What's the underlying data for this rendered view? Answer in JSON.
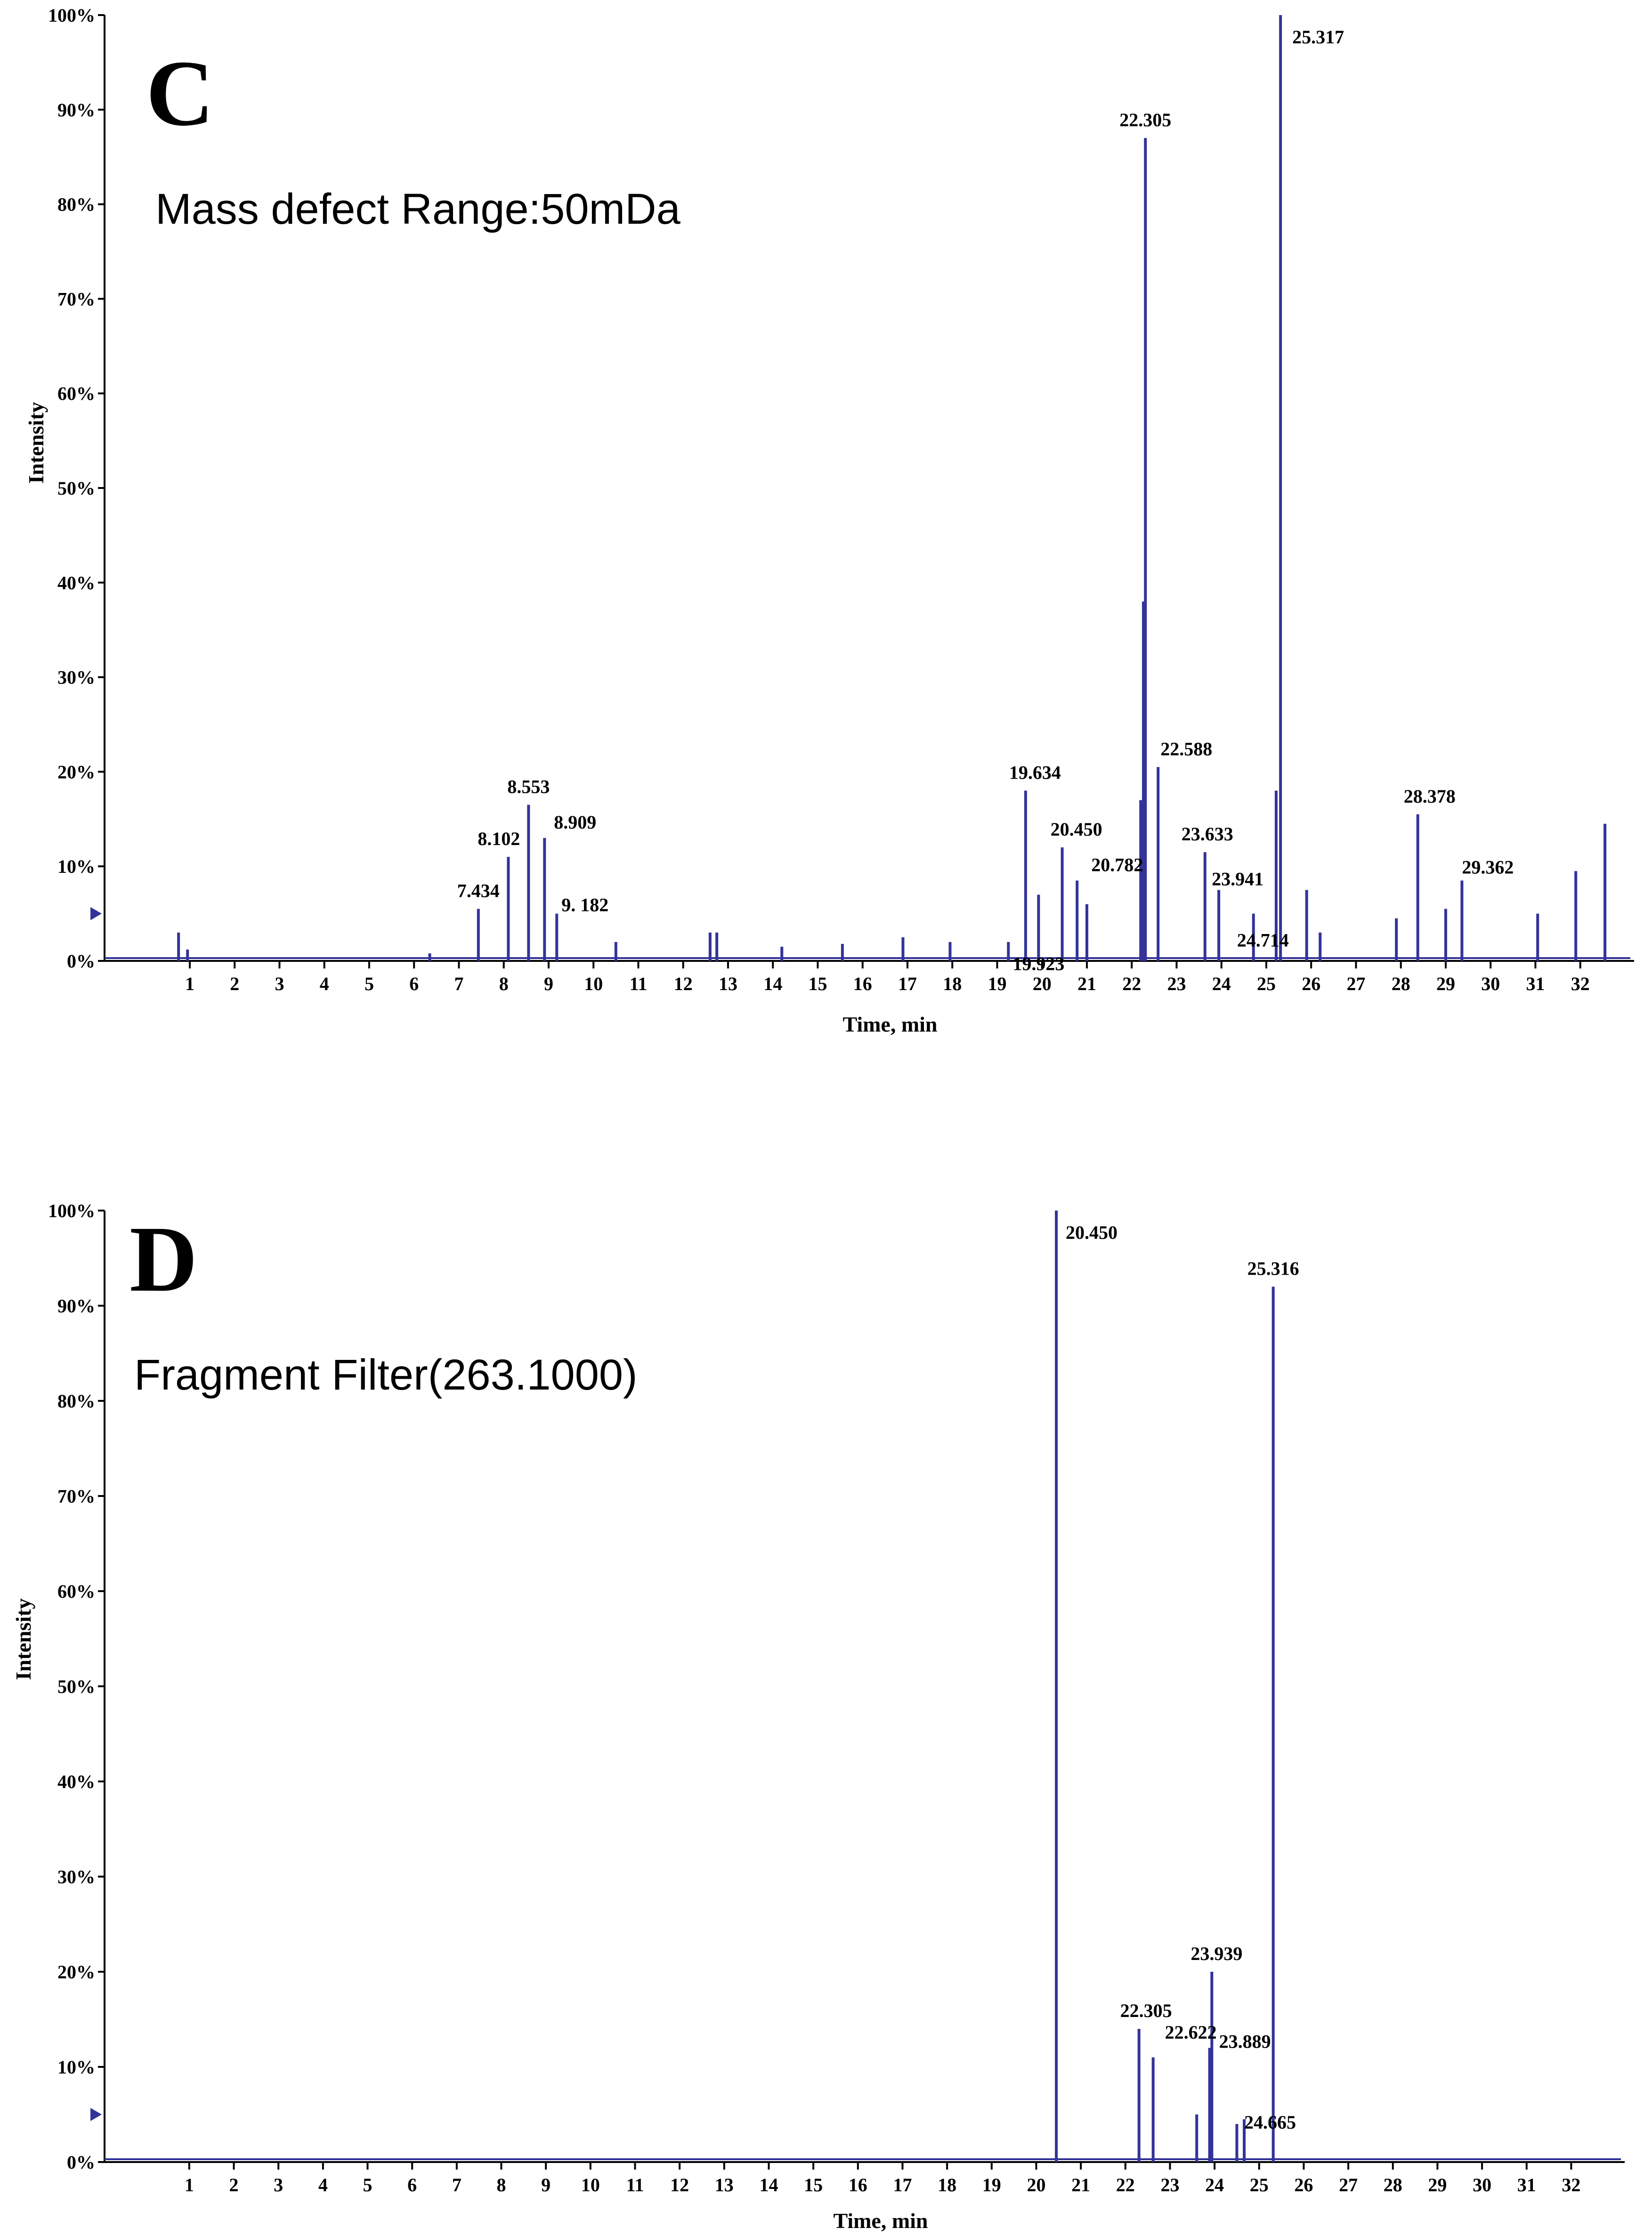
{
  "chart_data": [
    {
      "type": "line",
      "panel_label": "C",
      "subtitle": "Mass defect Range:50mDa",
      "xlabel": "Time, min",
      "ylabel": "Intensity",
      "xlim": [
        -0.9,
        33.2
      ],
      "ylim": [
        0,
        100
      ],
      "xticks": [
        "1",
        "2",
        "3",
        "4",
        "5",
        "6",
        "7",
        "8",
        "9",
        "10",
        "11",
        "12",
        "13",
        "14",
        "15",
        "16",
        "17",
        "18",
        "19",
        "20",
        "21",
        "22",
        "23",
        "24",
        "25",
        "26",
        "27",
        "28",
        "29",
        "30",
        "31",
        "32"
      ],
      "yticks": [
        "0%",
        "10%",
        "20%",
        "30%",
        "40%",
        "50%",
        "60%",
        "70%",
        "80%",
        "90%",
        "100%"
      ],
      "peaks": [
        {
          "x": 0.75,
          "y": 3.0
        },
        {
          "x": 0.95,
          "y": 1.2
        },
        {
          "x": 6.35,
          "y": 0.8
        },
        {
          "x": 7.434,
          "y": 5.5
        },
        {
          "x": 8.102,
          "y": 11.0
        },
        {
          "x": 8.553,
          "y": 16.5
        },
        {
          "x": 8.909,
          "y": 13.0
        },
        {
          "x": 9.182,
          "y": 5.0
        },
        {
          "x": 10.5,
          "y": 2.0
        },
        {
          "x": 12.6,
          "y": 3.0
        },
        {
          "x": 12.75,
          "y": 3.0
        },
        {
          "x": 14.2,
          "y": 1.5
        },
        {
          "x": 15.55,
          "y": 1.8
        },
        {
          "x": 16.9,
          "y": 2.5
        },
        {
          "x": 17.95,
          "y": 2.0
        },
        {
          "x": 19.25,
          "y": 2.0
        },
        {
          "x": 19.634,
          "y": 18.0
        },
        {
          "x": 19.923,
          "y": 7.0
        },
        {
          "x": 20.45,
          "y": 12.0
        },
        {
          "x": 20.782,
          "y": 8.5
        },
        {
          "x": 21.0,
          "y": 6.0
        },
        {
          "x": 22.2,
          "y": 17.0
        },
        {
          "x": 22.26,
          "y": 38.0
        },
        {
          "x": 22.305,
          "y": 87.0
        },
        {
          "x": 22.588,
          "y": 20.5
        },
        {
          "x": 23.633,
          "y": 11.5
        },
        {
          "x": 23.941,
          "y": 7.5
        },
        {
          "x": 24.714,
          "y": 5.0
        },
        {
          "x": 25.22,
          "y": 18.0
        },
        {
          "x": 25.317,
          "y": 100.0
        },
        {
          "x": 25.9,
          "y": 7.5
        },
        {
          "x": 26.2,
          "y": 3.0
        },
        {
          "x": 27.9,
          "y": 4.5
        },
        {
          "x": 28.378,
          "y": 15.5
        },
        {
          "x": 29.0,
          "y": 5.5
        },
        {
          "x": 29.362,
          "y": 8.5
        },
        {
          "x": 31.05,
          "y": 5.0
        },
        {
          "x": 31.9,
          "y": 9.5
        },
        {
          "x": 32.55,
          "y": 14.5
        }
      ],
      "peak_labels": [
        {
          "text": "7.434",
          "x": 7.434,
          "y": 5.5
        },
        {
          "text": "8.102",
          "x": 8.102,
          "y": 11.0
        },
        {
          "text": "8.553",
          "x": 8.553,
          "y": 16.5
        },
        {
          "text": "8.909",
          "x": 8.909,
          "y": 13.0
        },
        {
          "text": "9. 182",
          "x": 9.182,
          "y": 5.0
        },
        {
          "text": "19.634",
          "x": 19.634,
          "y": 18.0
        },
        {
          "text": "19.923",
          "x": 19.923,
          "y": 7.0
        },
        {
          "text": "20.450",
          "x": 20.45,
          "y": 12.0
        },
        {
          "text": "20.782",
          "x": 20.782,
          "y": 8.5
        },
        {
          "text": "22.305",
          "x": 22.305,
          "y": 87.0
        },
        {
          "text": "22.588",
          "x": 22.588,
          "y": 20.5
        },
        {
          "text": "23.633",
          "x": 23.633,
          "y": 11.5
        },
        {
          "text": "23.941",
          "x": 23.941,
          "y": 7.5
        },
        {
          "text": "24.714",
          "x": 24.714,
          "y": 5.0
        },
        {
          "text": "25.317",
          "x": 25.317,
          "y": 100.0
        },
        {
          "text": "28.378",
          "x": 28.378,
          "y": 15.5
        },
        {
          "text": "29.362",
          "x": 29.362,
          "y": 8.5
        }
      ]
    },
    {
      "type": "line",
      "panel_label": "D",
      "subtitle": "Fragment Filter(263.1000)",
      "xlabel": "Time, min",
      "ylabel": "Intensity",
      "xlim": [
        -0.9,
        33.2
      ],
      "ylim": [
        0,
        100
      ],
      "xticks": [
        "1",
        "2",
        "3",
        "4",
        "5",
        "6",
        "7",
        "8",
        "9",
        "10",
        "11",
        "12",
        "13",
        "14",
        "15",
        "16",
        "17",
        "18",
        "19",
        "20",
        "21",
        "22",
        "23",
        "24",
        "25",
        "26",
        "27",
        "28",
        "29",
        "30",
        "31",
        "32"
      ],
      "yticks": [
        "0%",
        "10%",
        "20%",
        "30%",
        "40%",
        "50%",
        "60%",
        "70%",
        "80%",
        "90%",
        "100%"
      ],
      "peaks": [
        {
          "x": 20.45,
          "y": 100.0
        },
        {
          "x": 22.305,
          "y": 14.0
        },
        {
          "x": 22.622,
          "y": 11.0
        },
        {
          "x": 23.6,
          "y": 5.0
        },
        {
          "x": 23.889,
          "y": 12.0
        },
        {
          "x": 23.939,
          "y": 20.0
        },
        {
          "x": 24.5,
          "y": 4.0
        },
        {
          "x": 24.665,
          "y": 4.5
        },
        {
          "x": 25.316,
          "y": 92.0
        }
      ],
      "peak_labels": [
        {
          "text": "20.450",
          "x": 20.45,
          "y": 100.0
        },
        {
          "text": "22.305",
          "x": 22.305,
          "y": 14.0
        },
        {
          "text": "22.622",
          "x": 22.622,
          "y": 11.0
        },
        {
          "text": "23.939",
          "x": 23.939,
          "y": 20.0
        },
        {
          "text": "23.889",
          "x": 23.889,
          "y": 12.0
        },
        {
          "text": "24.665",
          "x": 24.665,
          "y": 4.5
        },
        {
          "text": "25.316",
          "x": 25.316,
          "y": 92.0
        }
      ]
    }
  ]
}
